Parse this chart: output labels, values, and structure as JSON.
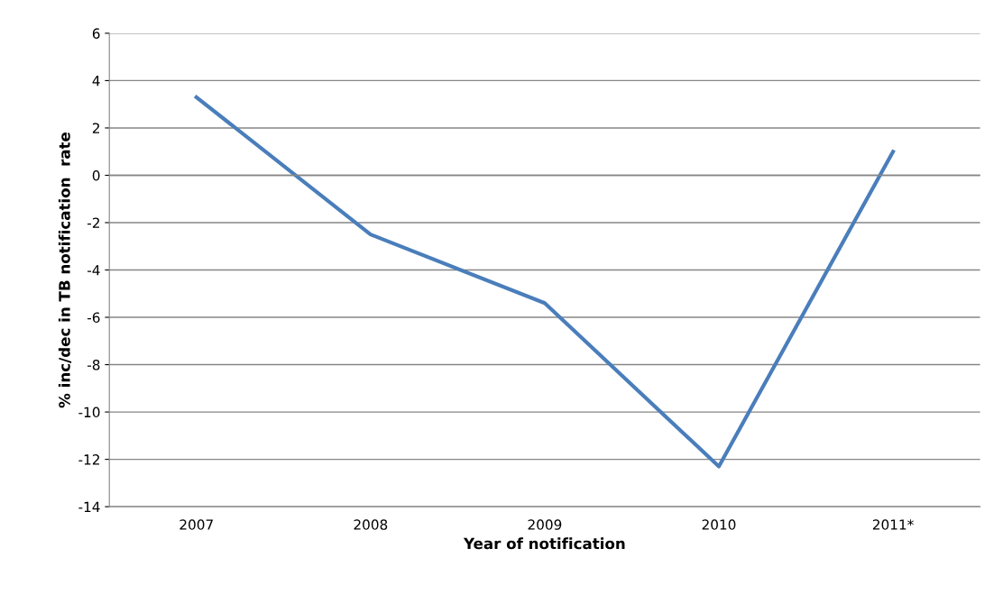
{
  "chart_data": {
    "type": "line",
    "xlabel": "Year of notification",
    "ylabel": "% inc/dec in TB notification  rate",
    "categories": [
      "2007",
      "2008",
      "2009",
      "2010",
      "2011*"
    ],
    "series": [
      {
        "color": "#4a7ebb",
        "values": [
          3.3,
          -2.5,
          -5.4,
          -12.3,
          1.0
        ]
      }
    ],
    "ylim": [
      -14,
      6
    ],
    "yticks": [
      -14,
      -12,
      -10,
      -8,
      -6,
      -4,
      -2,
      0,
      2,
      4,
      6
    ],
    "grid": "y",
    "legend": false,
    "marker": "none",
    "line_style": "solid"
  }
}
